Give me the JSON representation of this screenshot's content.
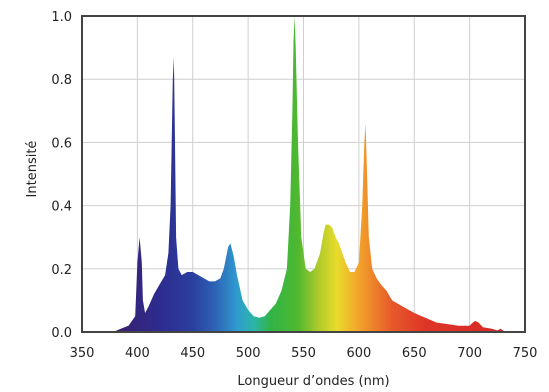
{
  "chart_data": {
    "type": "area",
    "title": "",
    "xlabel": "Longueur d’ondes (nm)",
    "ylabel": "Intensité",
    "xlim": [
      350,
      750
    ],
    "ylim": [
      0,
      1.0
    ],
    "x_ticks": [
      "350",
      "400",
      "450",
      "500",
      "550",
      "600",
      "650",
      "700",
      "750"
    ],
    "y_ticks": [
      "0.0",
      "0.2",
      "0.4",
      "0.6",
      "0.8",
      "1.0"
    ],
    "grid": true,
    "fill": "visible-spectrum-gradient",
    "series": [
      {
        "x": [
          378,
          385,
          392,
          398,
          400,
          402,
          404,
          405,
          407,
          410,
          415,
          420,
          425,
          428,
          430,
          432,
          433,
          434,
          435,
          437,
          440,
          445,
          450,
          455,
          460,
          465,
          470,
          475,
          478,
          482,
          484,
          487,
          490,
          495,
          500,
          505,
          510,
          515,
          520,
          525,
          530,
          535,
          538,
          540,
          541,
          542,
          543,
          545,
          548,
          552,
          556,
          560,
          565,
          568,
          570,
          573,
          576,
          579,
          582,
          585,
          588,
          592,
          596,
          600,
          603,
          605,
          606,
          607,
          609,
          612,
          616,
          620,
          625,
          630,
          640,
          650,
          660,
          670,
          680,
          690,
          700,
          703,
          705,
          708,
          712,
          720,
          725,
          728,
          732
        ],
        "y": [
          0.0,
          0.01,
          0.02,
          0.05,
          0.22,
          0.3,
          0.22,
          0.1,
          0.06,
          0.08,
          0.12,
          0.15,
          0.18,
          0.25,
          0.4,
          0.8,
          0.87,
          0.6,
          0.3,
          0.2,
          0.18,
          0.19,
          0.19,
          0.18,
          0.17,
          0.16,
          0.16,
          0.17,
          0.2,
          0.27,
          0.28,
          0.24,
          0.18,
          0.1,
          0.07,
          0.05,
          0.045,
          0.05,
          0.07,
          0.09,
          0.13,
          0.2,
          0.4,
          0.7,
          0.92,
          1.0,
          0.9,
          0.6,
          0.3,
          0.2,
          0.19,
          0.2,
          0.25,
          0.31,
          0.34,
          0.34,
          0.33,
          0.3,
          0.28,
          0.25,
          0.22,
          0.19,
          0.19,
          0.22,
          0.4,
          0.6,
          0.66,
          0.55,
          0.3,
          0.2,
          0.17,
          0.15,
          0.13,
          0.1,
          0.08,
          0.06,
          0.045,
          0.03,
          0.025,
          0.02,
          0.02,
          0.03,
          0.035,
          0.03,
          0.015,
          0.01,
          0.005,
          0.01,
          0.0
        ]
      }
    ]
  }
}
